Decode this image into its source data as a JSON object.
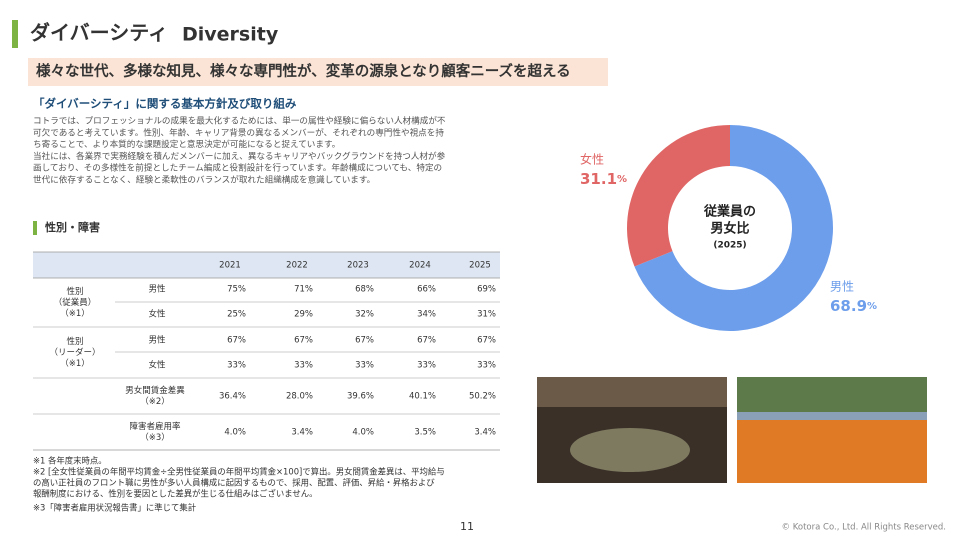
{
  "header": {
    "title": "ダイバーシティ",
    "title_en": "Diversity"
  },
  "banner": "様々な世代、多様な知見、様々な専門性が、変革の源泉となり顧客ニーズを超える",
  "section": {
    "title": "「ダイバーシティ」に関する基本方針及び取り組み",
    "paragraph": [
      "コトラでは、プロフェッショナルの成果を最大化するためには、単一の属性や経験に偏らない人材構成が不",
      "可欠であると考えています。性別、年齢、キャリア背景の異なるメンバーが、それぞれの専門性や視点を持",
      "ち寄ることで、より本質的な課題設定と意思決定が可能になると捉えています。",
      "当社には、各業界で実務経験を積んだメンバーに加え、異なるキャリアやバックグラウンドを持つ人材が参",
      "画しており、その多様性を前提としたチーム編成と役割設計を行っています。年齢構成についても、特定の",
      "世代に依存することなく、経験と柔軟性のバランスが取れた組織構成を意識しています。"
    ]
  },
  "table_title": "性別・障害",
  "table": {
    "years": [
      "2021",
      "2022",
      "2023",
      "2024",
      "2025"
    ],
    "groups": [
      [
        "性別",
        "（従業員）",
        "（※1）"
      ],
      [
        "性別",
        "（リーダー）",
        "（※1）"
      ]
    ],
    "rows": [
      {
        "label": [
          "男性"
        ],
        "cells": [
          "75%",
          "71%",
          "68%",
          "66%",
          "69%"
        ]
      },
      {
        "label": [
          "女性"
        ],
        "cells": [
          "25%",
          "29%",
          "32%",
          "34%",
          "31%"
        ]
      },
      {
        "label": [
          "男性"
        ],
        "cells": [
          "67%",
          "67%",
          "67%",
          "67%",
          "67%"
        ]
      },
      {
        "label": [
          "女性"
        ],
        "cells": [
          "33%",
          "33%",
          "33%",
          "33%",
          "33%"
        ]
      },
      {
        "label": [
          "男女間賃金差異",
          "（※2）"
        ],
        "cells": [
          "36.4%",
          "28.0%",
          "39.6%",
          "40.1%",
          "50.2%"
        ]
      },
      {
        "label": [
          "障害者雇用率",
          "（※3）"
        ],
        "cells": [
          "4.0%",
          "3.4%",
          "4.0%",
          "3.5%",
          "3.4%"
        ]
      }
    ]
  },
  "notes": [
    "※1 各年度末時点。",
    "※2 [全女性従業員の年間平均賃金÷全男性従業員の年間平均賃金×100]で算出。男女間賃金差異は、平均給与",
    "の高い正社員のフロント職に男性が多い人員構成に起因するもので、採用、配置、評価、昇給・昇格および",
    "報酬制度における、性別を要因とした差異が生じる仕組みはございません。",
    "※3「障害者雇用状況報告書」に準じて集計"
  ],
  "donut": {
    "center": [
      "従業員の",
      "男女比",
      "(2025)"
    ],
    "unit": "%",
    "segments": [
      {
        "name": "男性",
        "value": 68.9,
        "color": "#6d9eeb"
      },
      {
        "name": "女性",
        "value": 31.1,
        "color": "#e06666"
      }
    ]
  },
  "page_number": "11",
  "copyright": "© Kotora Co., Ltd. All Rights Reserved."
}
